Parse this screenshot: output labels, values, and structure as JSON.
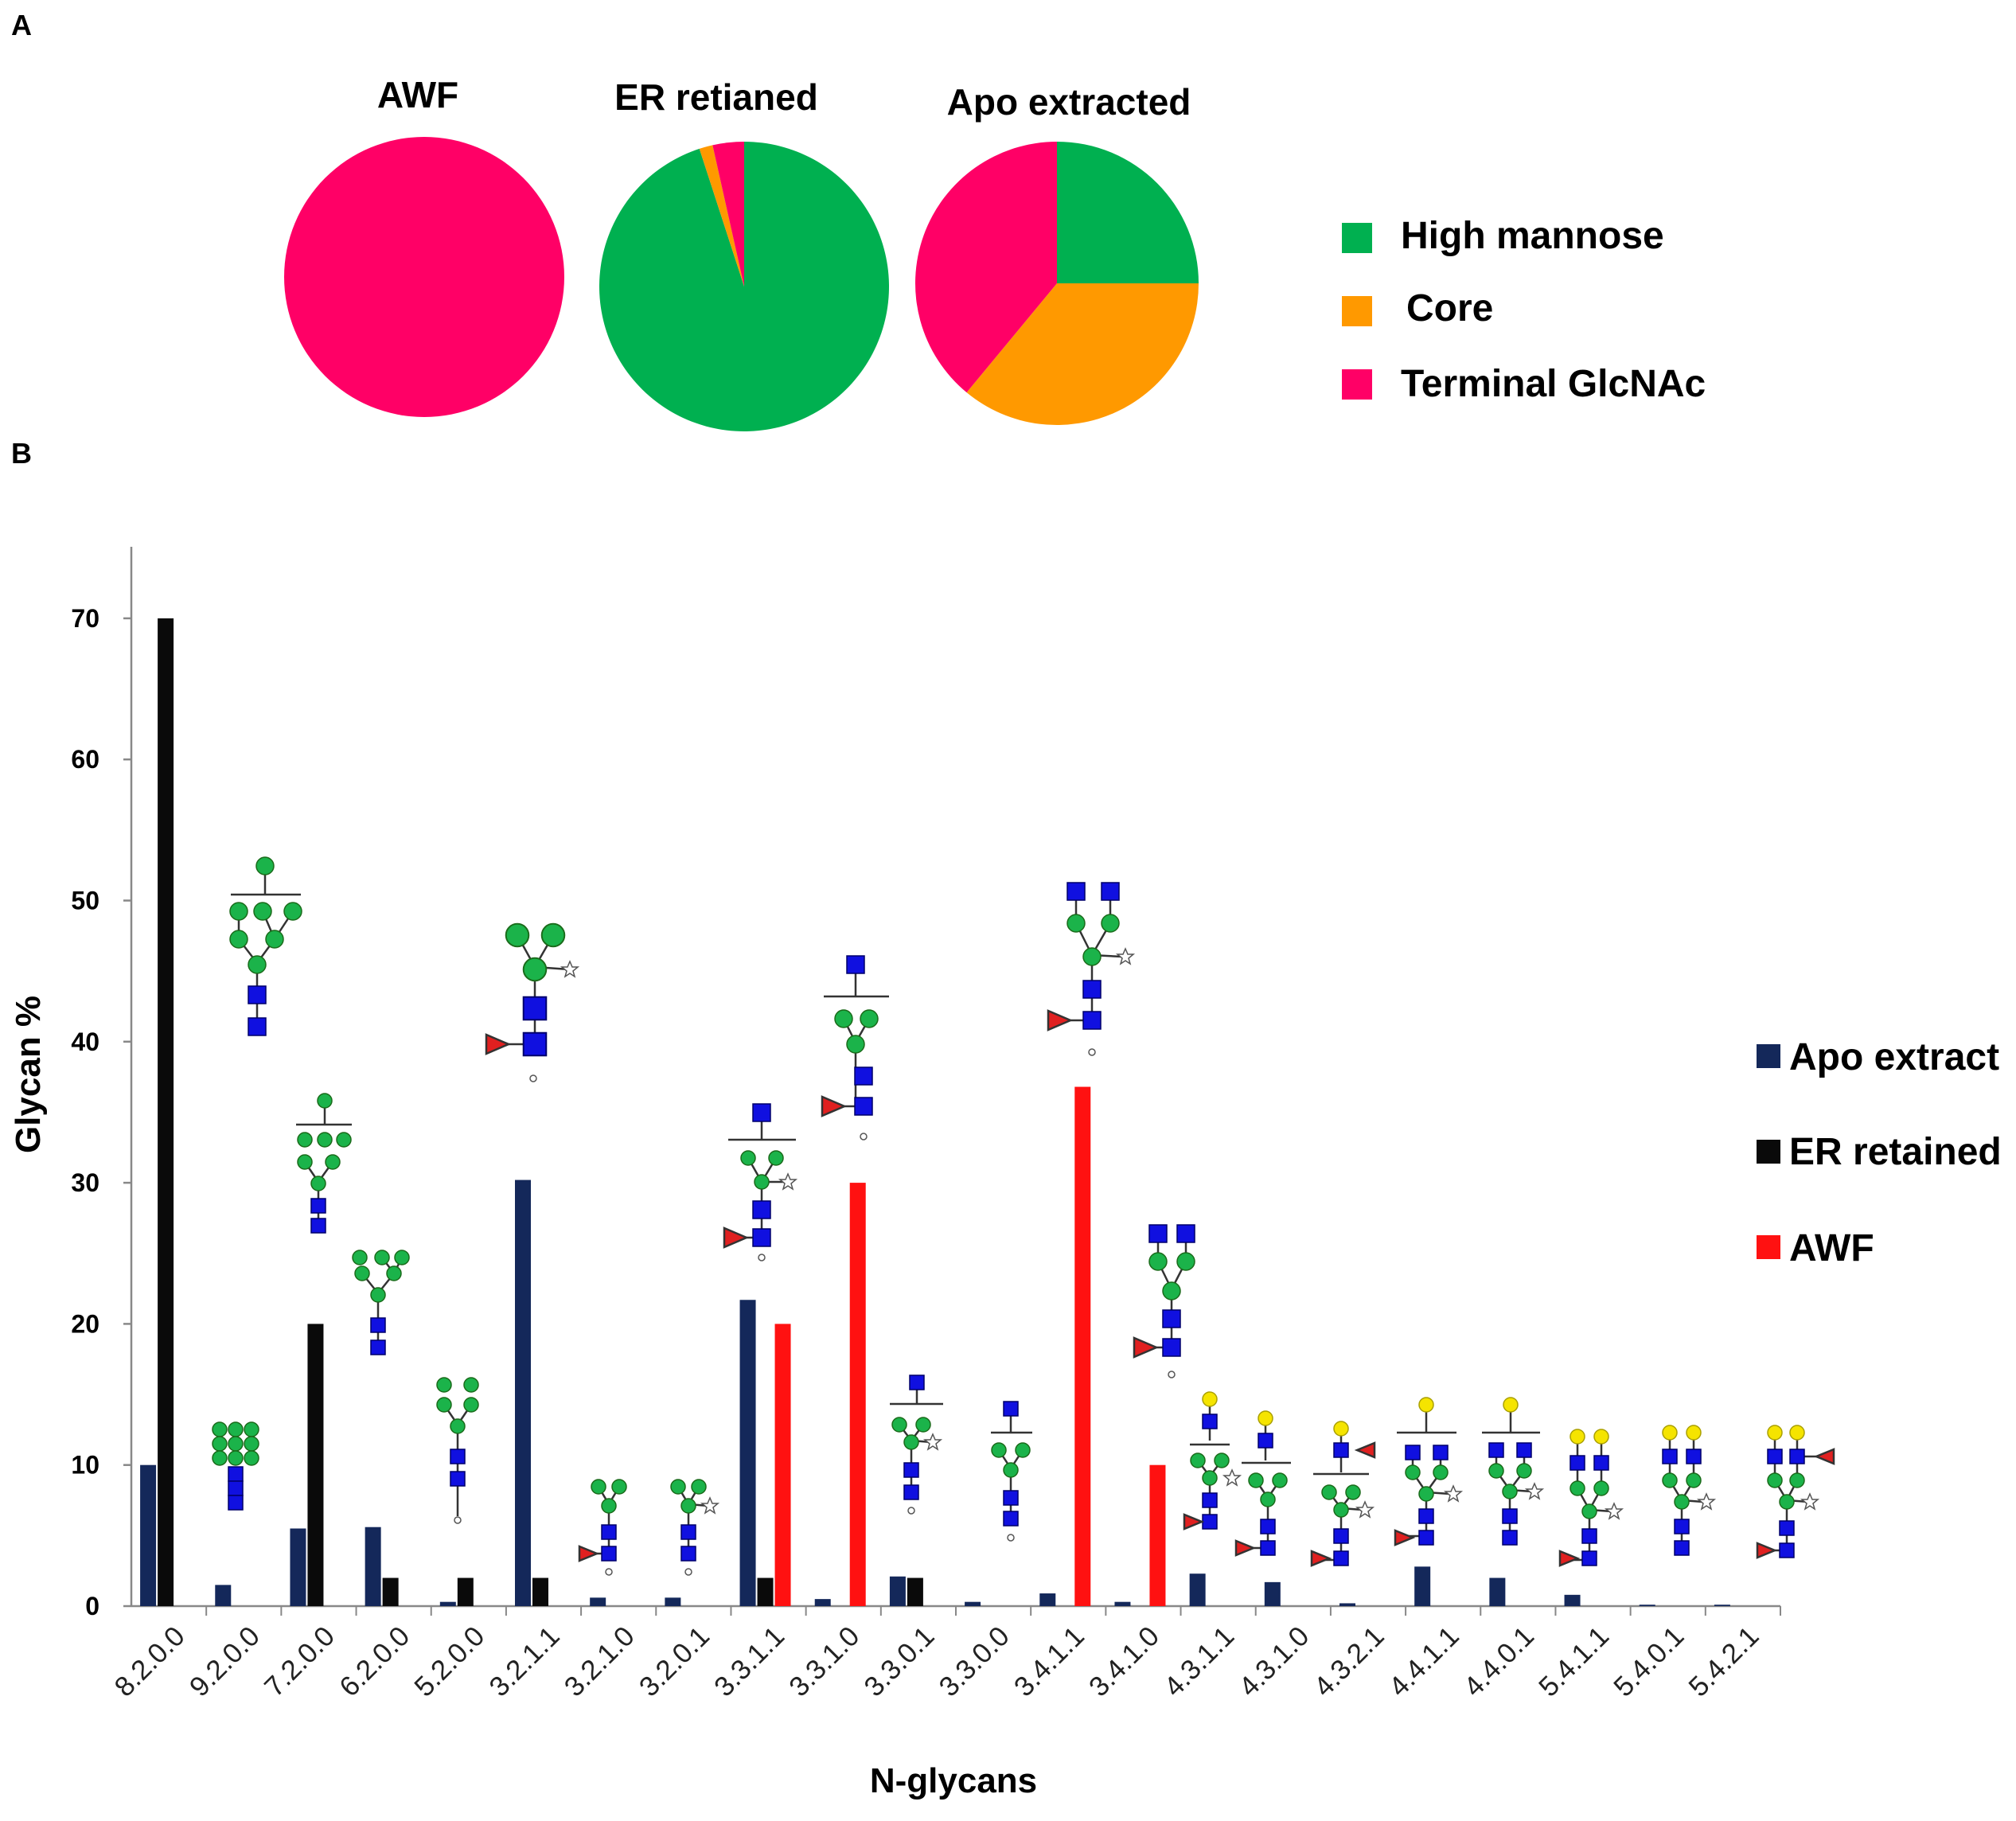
{
  "panels": {
    "a": "A",
    "b": "B"
  },
  "pies": [
    {
      "title": "AWF",
      "slices": [
        {
          "category": "Terminal GlcNAc",
          "value": 100
        }
      ]
    },
    {
      "title": "ER retianed",
      "slices": [
        {
          "category": "High mannose",
          "value": 95
        },
        {
          "category": "Core",
          "value": 1.5
        },
        {
          "category": "Terminal GlcNAc",
          "value": 3.5
        }
      ]
    },
    {
      "title": "Apo extracted",
      "slices": [
        {
          "category": "High mannose",
          "value": 25
        },
        {
          "category": "Core",
          "value": 36
        },
        {
          "category": "Terminal GlcNAc",
          "value": 39
        }
      ]
    }
  ],
  "pie_legend": [
    {
      "label": "High mannose",
      "color": "#00b050"
    },
    {
      "label": "Core",
      "color": "#ff9900"
    },
    {
      "label": "Terminal GlcNAc",
      "color": "#ff0066"
    }
  ],
  "chart_data": {
    "type": "bar",
    "title": "",
    "xlabel": "N-glycans",
    "ylabel": "Glycan %",
    "ylim": [
      0,
      75
    ],
    "yticks": [
      0,
      10,
      20,
      30,
      40,
      50,
      60,
      70
    ],
    "categories": [
      "8.2.0.0",
      "9.2.0.0",
      "7.2.0.0",
      "6.2.0.0",
      "5.2.0.0",
      "3.2.1.1",
      "3.2.1.0",
      "3.2.0.1",
      "3.3.1.1",
      "3.3.1.0",
      "3.3.0.1",
      "3.3.0.0",
      "3.4.1.1",
      "3.4.1.0",
      "4.3.1.1",
      "4.3.1.0",
      "4.3.2.1",
      "4.4.1.1",
      "4.4.0.1",
      "5.4.1.1",
      "5.4.0.1",
      "5.4.2.1"
    ],
    "series": [
      {
        "name": "Apo extract",
        "color": "#14285a",
        "values": [
          10,
          1.5,
          5.5,
          5.6,
          0.3,
          30.2,
          0.6,
          0.6,
          21.7,
          0.5,
          2.1,
          0.3,
          0.9,
          0.3,
          2.3,
          1.7,
          0.2,
          2.8,
          2.0,
          0.8,
          0.1,
          0.1
        ]
      },
      {
        "name": "ER retained",
        "color": "#0a0a0a",
        "values": [
          70,
          0,
          20,
          2,
          2,
          2,
          0,
          0,
          2,
          0,
          2,
          0,
          0,
          0,
          0,
          0,
          0,
          0,
          0,
          0,
          0,
          0
        ]
      },
      {
        "name": "AWF",
        "color": "#ff1111",
        "values": [
          0,
          0,
          0,
          0,
          0,
          0,
          0,
          0,
          20,
          30,
          0,
          0,
          36.8,
          10,
          0,
          0,
          0,
          0,
          0,
          0,
          0,
          0
        ]
      }
    ]
  }
}
